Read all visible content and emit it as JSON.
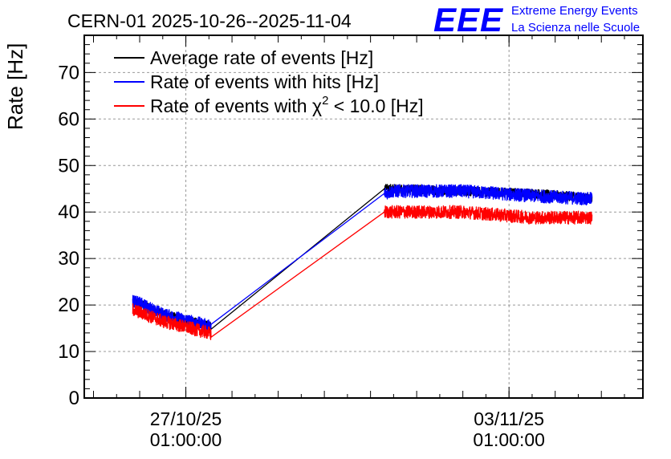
{
  "header": {
    "title": "CERN-01 2025-10-26--2025-11-04",
    "logo_text": "EEE",
    "org_line1": "Extreme Energy Events",
    "org_line2": "La Scienza nelle Scuole"
  },
  "colors": {
    "average": "#000000",
    "hits": "#0000ff",
    "chi2": "#ff0000",
    "logo": "#0000ff",
    "grid": "#999999"
  },
  "chart_data": {
    "type": "line",
    "title": "CERN-01 2025-10-26--2025-11-04",
    "xlabel": "",
    "ylabel": "Rate [Hz]",
    "ylim": [
      0,
      78
    ],
    "xlim_days": [
      -2.2,
      9.9
    ],
    "yticks": [
      0,
      10,
      20,
      30,
      40,
      50,
      60,
      70
    ],
    "xticks": [
      {
        "day": 0,
        "date": "27/10/25",
        "time": "01:00:00"
      },
      {
        "day": 7,
        "date": "03/11/25",
        "time": "01:00:00"
      }
    ],
    "grid": true,
    "legend_position": "top-left",
    "legend": [
      {
        "key": "average",
        "label_pre": "Average rate of events [Hz]",
        "sup": "",
        "label_post": ""
      },
      {
        "key": "hits",
        "label_pre": "Rate of events with hits [Hz]",
        "sup": "",
        "label_post": ""
      },
      {
        "key": "chi2",
        "label_pre": "Rate of events with χ",
        "sup": "2",
        "label_post": " < 10.0 [Hz]"
      }
    ],
    "series": [
      {
        "key": "average",
        "name": "Average rate of events [Hz]",
        "x": [
          -1.15,
          -0.5,
          0.5,
          0.55,
          4.3,
          4.5,
          6.0,
          7.5,
          8.8
        ],
        "y": [
          21.0,
          18.0,
          15.5,
          15.5,
          45.0,
          45.0,
          44.5,
          44.0,
          43.0
        ],
        "noise": 1.0
      },
      {
        "key": "hits",
        "name": "Rate of events with hits [Hz]",
        "x": [
          -1.15,
          -0.5,
          0.5,
          0.55,
          4.3,
          4.5,
          6.0,
          7.5,
          8.8
        ],
        "y": [
          21.0,
          18.0,
          15.5,
          15.0,
          44.0,
          44.5,
          44.5,
          43.5,
          42.8
        ],
        "noise": 1.4
      },
      {
        "key": "chi2",
        "name": "Rate of events with χ2 < 10.0 [Hz]",
        "x": [
          -1.15,
          -0.5,
          0.5,
          0.55,
          4.3,
          4.5,
          6.0,
          7.5,
          8.8
        ],
        "y": [
          19.0,
          16.5,
          14.0,
          13.5,
          40.0,
          40.0,
          40.0,
          38.8,
          38.8
        ],
        "noise": 1.4
      }
    ]
  }
}
